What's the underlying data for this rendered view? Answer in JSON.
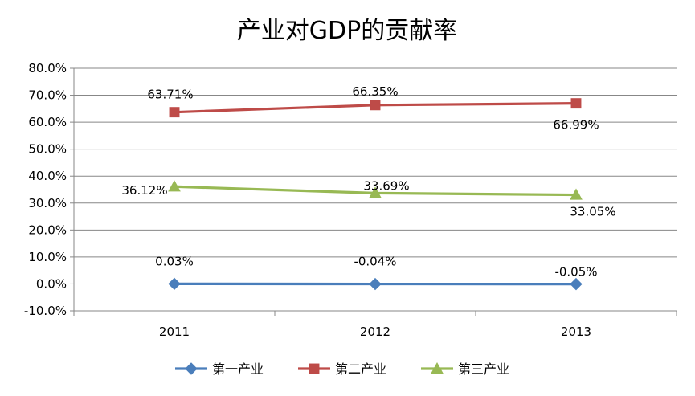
{
  "chart_data": {
    "type": "line",
    "title": "产业对GDP的贡献率",
    "categories": [
      "2011",
      "2012",
      "2013"
    ],
    "yticks": [
      "80.0%",
      "70.0%",
      "60.0%",
      "50.0%",
      "40.0%",
      "30.0%",
      "20.0%",
      "10.0%",
      "0.0%",
      "-10.0%"
    ],
    "ylim": [
      -10,
      80
    ],
    "grid": true,
    "legend_position": "bottom",
    "series": [
      {
        "name": "第一产业",
        "values": [
          0.03,
          -0.04,
          -0.05
        ],
        "labels": [
          "0.03%",
          "-0.04%",
          "-0.05%"
        ],
        "color": "#4a7ebb",
        "marker": "diamond"
      },
      {
        "name": "第二产业",
        "values": [
          63.71,
          66.35,
          66.99
        ],
        "labels": [
          "63.71%",
          "66.35%",
          "66.99%"
        ],
        "color": "#be4b48",
        "marker": "square"
      },
      {
        "name": "第三产业",
        "values": [
          36.12,
          33.69,
          33.05
        ],
        "labels": [
          "36.12%",
          "33.69%",
          "33.05%"
        ],
        "color": "#98b954",
        "marker": "triangle"
      }
    ]
  }
}
